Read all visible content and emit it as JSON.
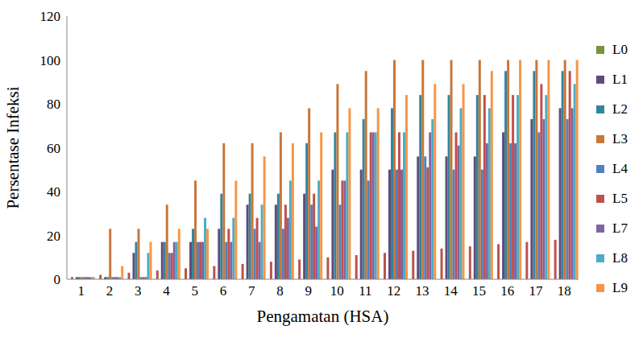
{
  "chart_data": {
    "type": "bar",
    "x_label": "Pengamatan (HSA)",
    "y_label": "Persentase Infeksi",
    "categories": [
      1,
      2,
      3,
      4,
      5,
      6,
      7,
      8,
      9,
      10,
      11,
      12,
      13,
      14,
      15,
      16,
      17,
      18
    ],
    "ylim": [
      0,
      120
    ],
    "yticks": [
      0,
      20,
      40,
      60,
      80,
      100,
      120
    ],
    "grid": false,
    "legend": "right",
    "series": [
      {
        "name": null,
        "color": "#B9524E",
        "values": [
          1,
          2,
          3,
          4,
          5,
          6,
          7,
          8,
          9,
          10,
          11,
          12,
          13,
          14,
          15,
          16,
          17,
          18
        ]
      },
      {
        "name": "L0",
        "color": "#77933C",
        "values": [
          0,
          0,
          0,
          0,
          0,
          0,
          0,
          0,
          0,
          0,
          0,
          0,
          0,
          0,
          0,
          0,
          0,
          0
        ]
      },
      {
        "name": "L1",
        "color": "#604A7B",
        "values": [
          1,
          1,
          12,
          17,
          17,
          23,
          34,
          34,
          39,
          50,
          50,
          50,
          56,
          56,
          56,
          67,
          73,
          78
        ]
      },
      {
        "name": "L2",
        "color": "#31859C",
        "values": [
          1,
          1,
          17,
          17,
          23,
          39,
          39,
          39,
          62,
          67,
          73,
          78,
          84,
          84,
          84,
          95,
          95,
          95
        ]
      },
      {
        "name": "L3",
        "color": "#C8773A",
        "values": [
          1,
          23,
          23,
          34,
          45,
          62,
          62,
          67,
          78,
          89,
          95,
          100,
          100,
          100,
          100,
          100,
          100,
          100
        ]
      },
      {
        "name": "L4",
        "color": "#4F81BD",
        "values": [
          1,
          1,
          1,
          12,
          17,
          17,
          23,
          23,
          34,
          34,
          45,
          50,
          56,
          50,
          50,
          62,
          67,
          73
        ]
      },
      {
        "name": "L5",
        "color": "#C0504D",
        "values": [
          1,
          1,
          1,
          12,
          17,
          23,
          28,
          34,
          39,
          45,
          67,
          67,
          51,
          67,
          84,
          84,
          89,
          95
        ]
      },
      {
        "name": "L7",
        "color": "#8064A2",
        "values": [
          1,
          1,
          1,
          17,
          17,
          17,
          17,
          28,
          24,
          45,
          67,
          50,
          67,
          61,
          62,
          62,
          73,
          78
        ]
      },
      {
        "name": "L8",
        "color": "#4BACC6",
        "values": [
          1,
          1,
          12,
          17,
          28,
          28,
          34,
          45,
          45,
          67,
          67,
          67,
          73,
          78,
          78,
          84,
          84,
          89
        ]
      },
      {
        "name": "L9",
        "color": "#F79646",
        "values": [
          1,
          6,
          17,
          23,
          23,
          45,
          56,
          62,
          67,
          78,
          78,
          84,
          89,
          89,
          95,
          100,
          100,
          100
        ]
      }
    ]
  }
}
